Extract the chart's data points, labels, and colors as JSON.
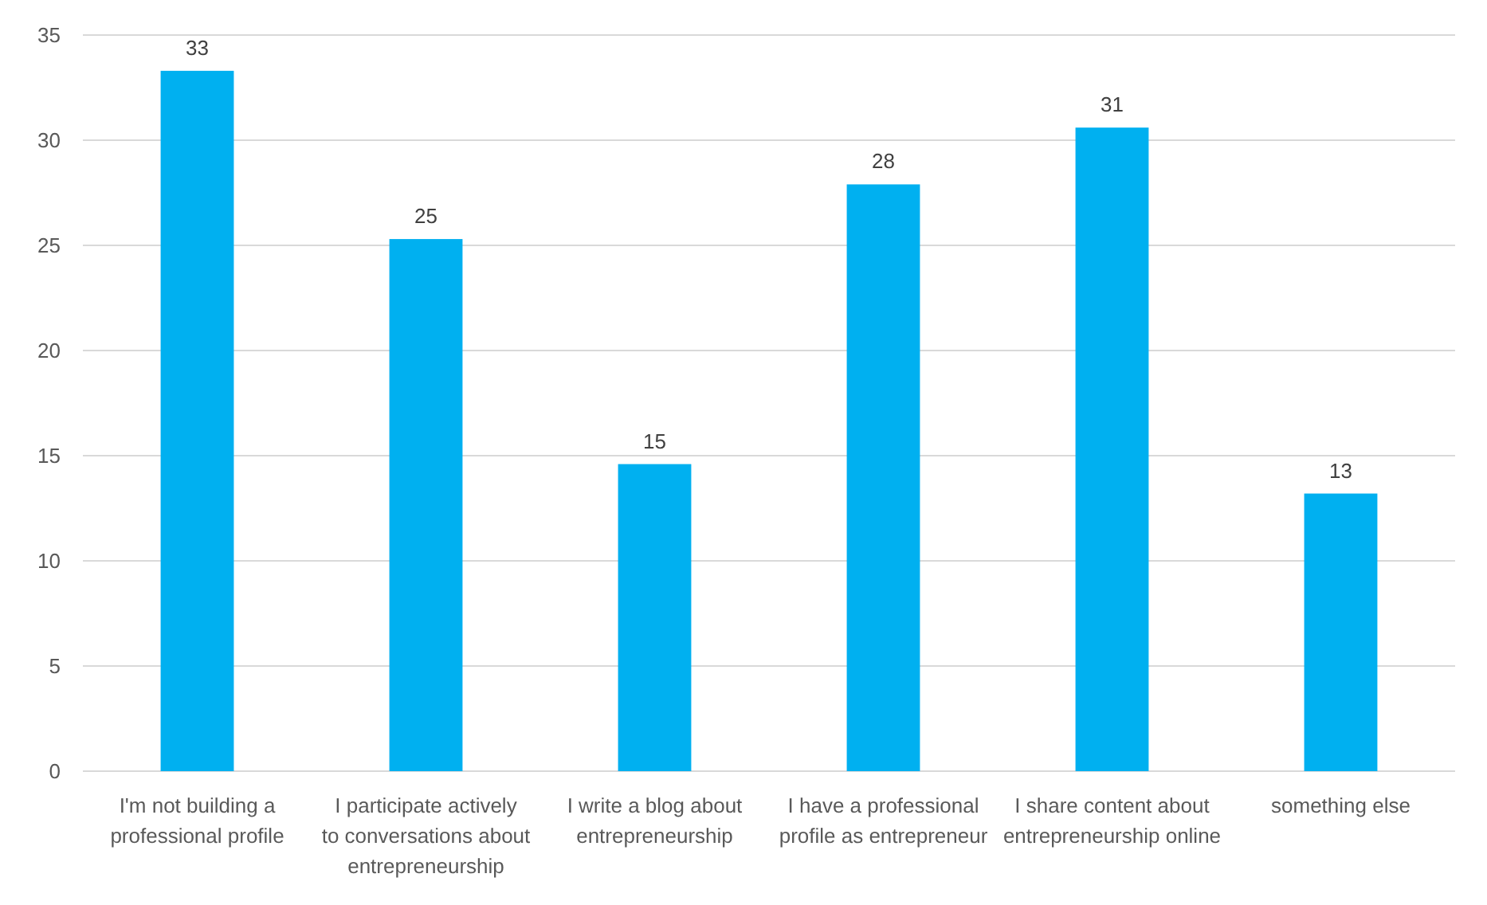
{
  "chart_data": {
    "type": "bar",
    "categories": [
      "I'm not building a professional profile",
      "I participate actively to conversations about entrepreneurship",
      "I write a blog about entrepreneurship",
      "I have a professional profile as entrepreneur",
      "I share content about entrepreneurship online",
      "something else"
    ],
    "values": [
      33.3,
      25.3,
      14.6,
      27.9,
      30.6,
      13.2
    ],
    "value_labels": [
      "33",
      "25",
      "15",
      "28",
      "31",
      "13"
    ],
    "color": "#00b0f0",
    "ylim": [
      0,
      35
    ],
    "yticks": [
      0,
      5,
      10,
      15,
      20,
      25,
      30,
      35
    ],
    "grid": "y"
  }
}
